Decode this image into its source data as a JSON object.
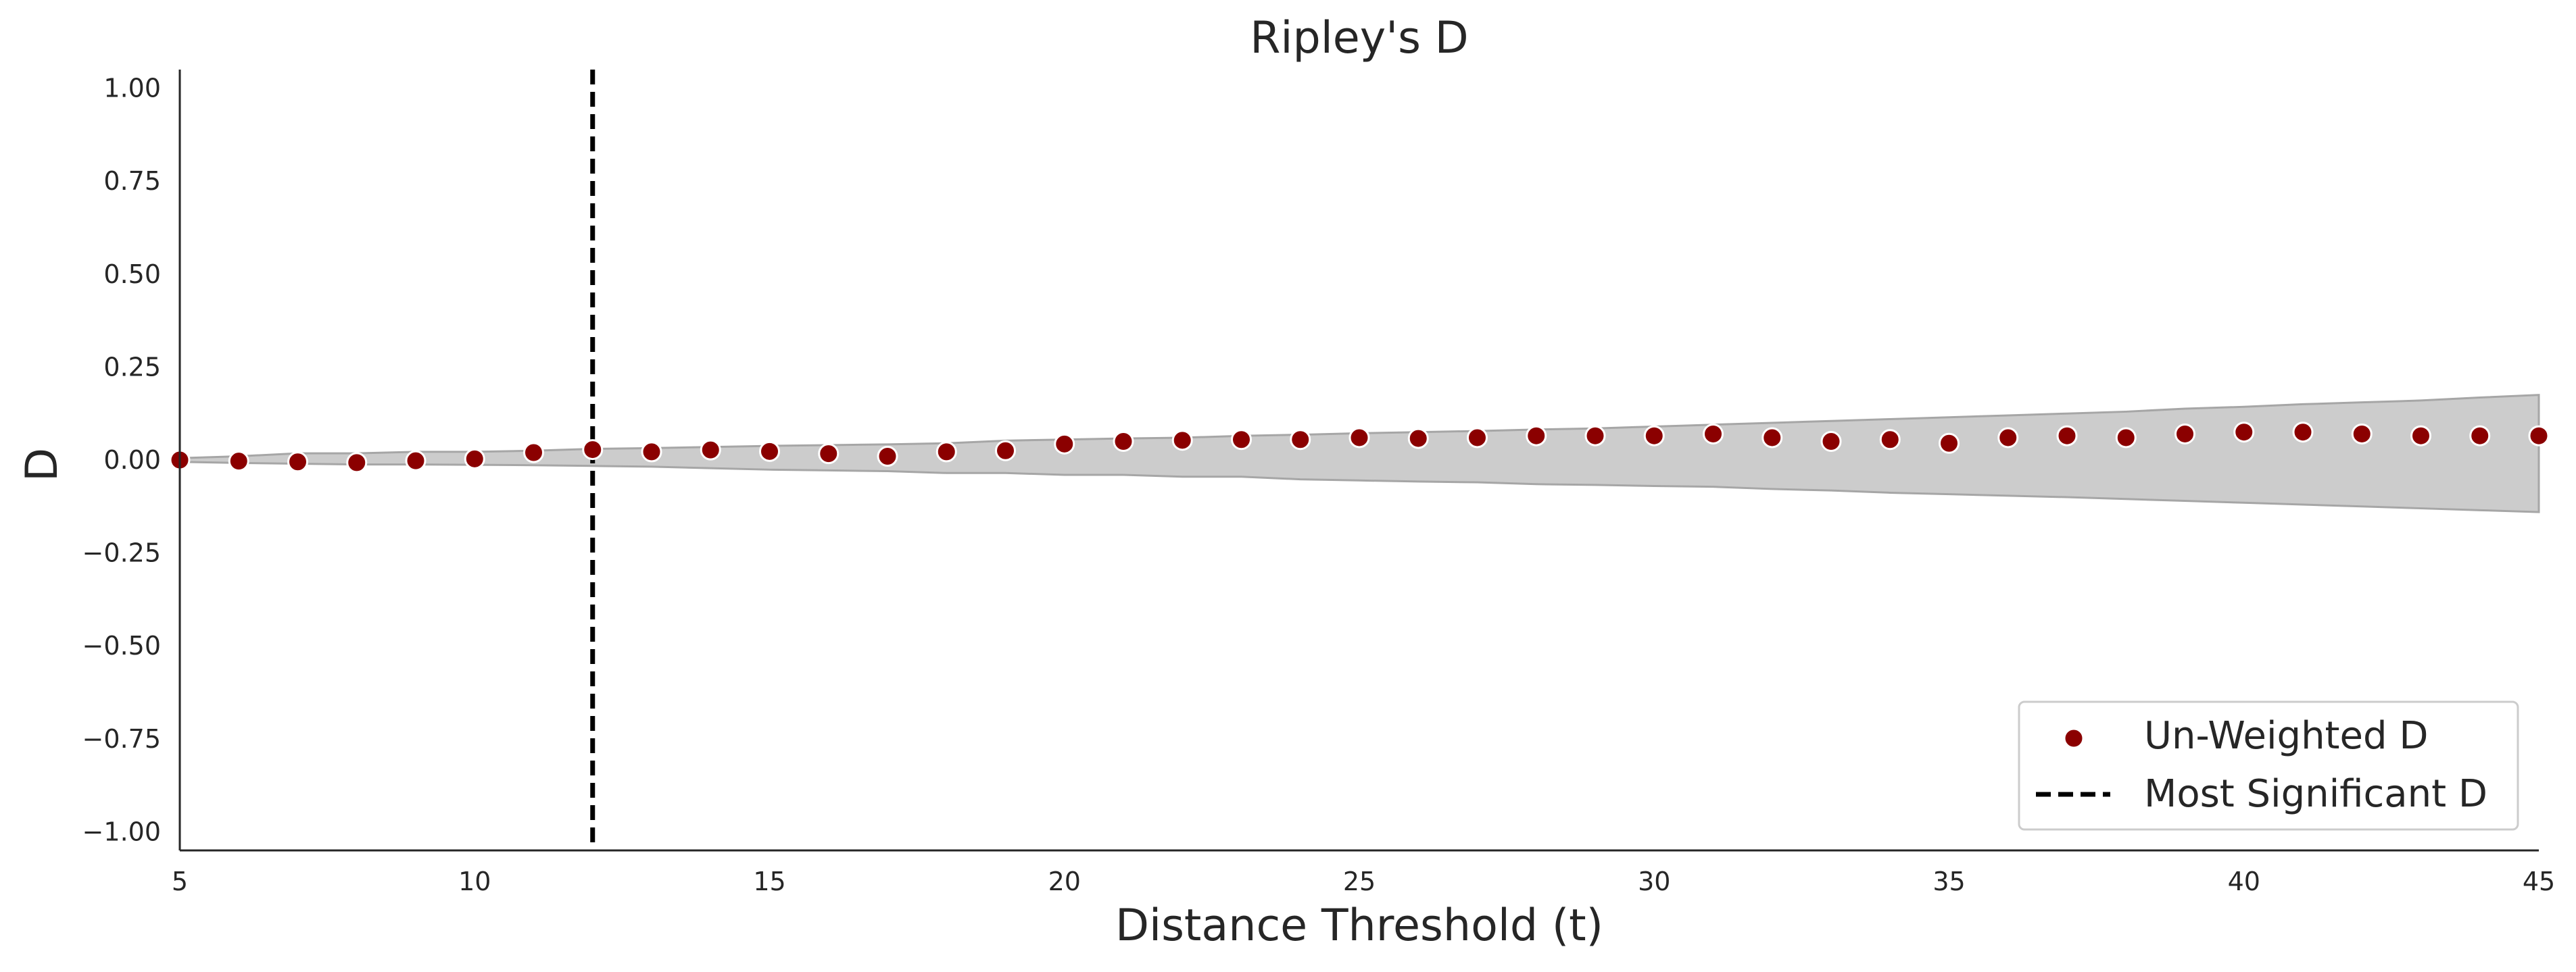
{
  "chart_data": {
    "type": "scatter",
    "title": "Ripley's D",
    "xlabel": "Distance Threshold (t)",
    "ylabel": "D",
    "xlim": [
      5,
      45
    ],
    "ylim": [
      -1.05,
      1.05
    ],
    "x_ticks": [
      5,
      10,
      15,
      20,
      25,
      30,
      35,
      40,
      45
    ],
    "x_tick_labels": [
      "5",
      "10",
      "15",
      "20",
      "25",
      "30",
      "35",
      "40",
      "45"
    ],
    "y_ticks": [
      1.0,
      0.75,
      0.5,
      0.25,
      0.0,
      -0.25,
      -0.5,
      -0.75,
      -1.0
    ],
    "y_tick_labels": [
      "1.00",
      "0.75",
      "0.50",
      "0.25",
      "0.00",
      "−0.25",
      "−0.50",
      "−0.75",
      "−1.00"
    ],
    "grid": false,
    "legend_position": "bottom-right",
    "series": [
      {
        "name": "Un-Weighted D",
        "kind": "scatter",
        "color": "#8b0000",
        "x": [
          5,
          6,
          7,
          8,
          9,
          10,
          11,
          12,
          13,
          14,
          15,
          16,
          17,
          18,
          19,
          20,
          21,
          22,
          23,
          24,
          25,
          26,
          27,
          28,
          29,
          30,
          31,
          32,
          33,
          34,
          35,
          36,
          37,
          38,
          39,
          40,
          41,
          42,
          43,
          44,
          45
        ],
        "y": [
          0.0,
          -0.003,
          -0.005,
          -0.007,
          -0.002,
          0.003,
          0.02,
          0.028,
          0.022,
          0.027,
          0.023,
          0.017,
          0.01,
          0.022,
          0.025,
          0.043,
          0.05,
          0.053,
          0.055,
          0.055,
          0.06,
          0.058,
          0.06,
          0.065,
          0.065,
          0.065,
          0.07,
          0.06,
          0.05,
          0.055,
          0.045,
          0.06,
          0.065,
          0.06,
          0.07,
          0.075,
          0.075,
          0.07,
          0.065,
          0.065,
          0.065
        ]
      },
      {
        "name": "Most Significant D",
        "kind": "vline",
        "color": "#000000",
        "x": 12
      }
    ],
    "envelope": {
      "color": "#cccccc",
      "edge_color": "#a6a6a6",
      "x": [
        5,
        6,
        7,
        8,
        9,
        10,
        11,
        12,
        13,
        14,
        15,
        16,
        17,
        18,
        19,
        20,
        21,
        22,
        23,
        24,
        25,
        26,
        27,
        28,
        29,
        30,
        31,
        32,
        33,
        34,
        35,
        36,
        37,
        38,
        39,
        40,
        41,
        42,
        43,
        44,
        45
      ],
      "upper": [
        0.005,
        0.01,
        0.018,
        0.018,
        0.022,
        0.022,
        0.025,
        0.03,
        0.032,
        0.035,
        0.038,
        0.04,
        0.042,
        0.045,
        0.052,
        0.055,
        0.058,
        0.06,
        0.065,
        0.068,
        0.072,
        0.075,
        0.078,
        0.082,
        0.085,
        0.09,
        0.095,
        0.1,
        0.105,
        0.11,
        0.115,
        0.12,
        0.125,
        0.13,
        0.138,
        0.143,
        0.15,
        0.155,
        0.16,
        0.168,
        0.175
      ],
      "lower": [
        -0.005,
        -0.008,
        -0.01,
        -0.012,
        -0.012,
        -0.013,
        -0.014,
        -0.016,
        -0.018,
        -0.022,
        -0.026,
        -0.028,
        -0.03,
        -0.035,
        -0.035,
        -0.04,
        -0.04,
        -0.045,
        -0.045,
        -0.052,
        -0.055,
        -0.058,
        -0.06,
        -0.065,
        -0.067,
        -0.07,
        -0.072,
        -0.078,
        -0.082,
        -0.088,
        -0.092,
        -0.096,
        -0.1,
        -0.105,
        -0.11,
        -0.115,
        -0.12,
        -0.125,
        -0.13,
        -0.135,
        -0.14
      ]
    }
  }
}
